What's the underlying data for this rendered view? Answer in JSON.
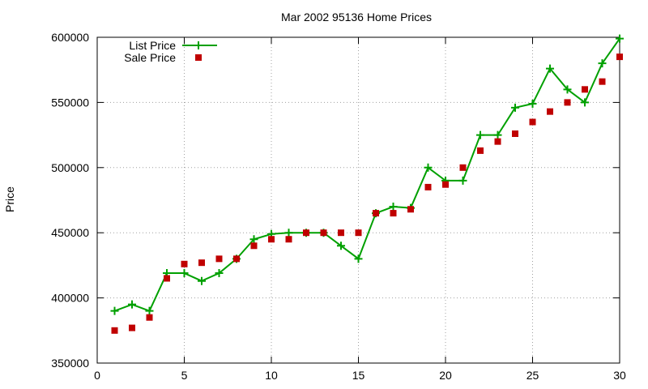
{
  "chart_data": {
    "type": "line",
    "title": "Mar 2002 95136 Home Prices",
    "xlabel": "",
    "ylabel": "Price",
    "xlim": [
      0,
      30
    ],
    "ylim": [
      350000,
      600000
    ],
    "xticks": [
      0,
      5,
      10,
      15,
      20,
      25,
      30
    ],
    "yticks": [
      350000,
      400000,
      450000,
      500000,
      550000,
      600000
    ],
    "grid": true,
    "legend_position": "top-left",
    "series": [
      {
        "name": "List Price",
        "style": "line-with-plus-markers",
        "color": "#00a000",
        "x": [
          1,
          2,
          3,
          4,
          5,
          6,
          7,
          8,
          9,
          10,
          11,
          12,
          13,
          14,
          15,
          16,
          17,
          18,
          19,
          20,
          21,
          22,
          23,
          24,
          25,
          26,
          27,
          28,
          29,
          30
        ],
        "y": [
          390000,
          395000,
          390000,
          419000,
          419000,
          413000,
          419000,
          430000,
          445000,
          449000,
          450000,
          450000,
          450000,
          440000,
          430000,
          465000,
          470000,
          469000,
          500000,
          490000,
          490000,
          525000,
          525000,
          546000,
          549000,
          576000,
          560000,
          550000,
          580000,
          599000
        ]
      },
      {
        "name": "Sale Price",
        "style": "square-markers",
        "color": "#c00000",
        "x": [
          1,
          2,
          3,
          4,
          5,
          6,
          7,
          8,
          9,
          10,
          11,
          12,
          13,
          14,
          15,
          16,
          17,
          18,
          19,
          20,
          21,
          22,
          23,
          24,
          25,
          26,
          27,
          28,
          29,
          30
        ],
        "y": [
          375000,
          377000,
          385000,
          415000,
          426000,
          427000,
          430000,
          430000,
          440000,
          445000,
          445000,
          450000,
          450000,
          450000,
          450000,
          465000,
          465000,
          468000,
          485000,
          487000,
          500000,
          513000,
          520000,
          526000,
          535000,
          543000,
          550000,
          560000,
          566000,
          585000
        ]
      }
    ]
  }
}
